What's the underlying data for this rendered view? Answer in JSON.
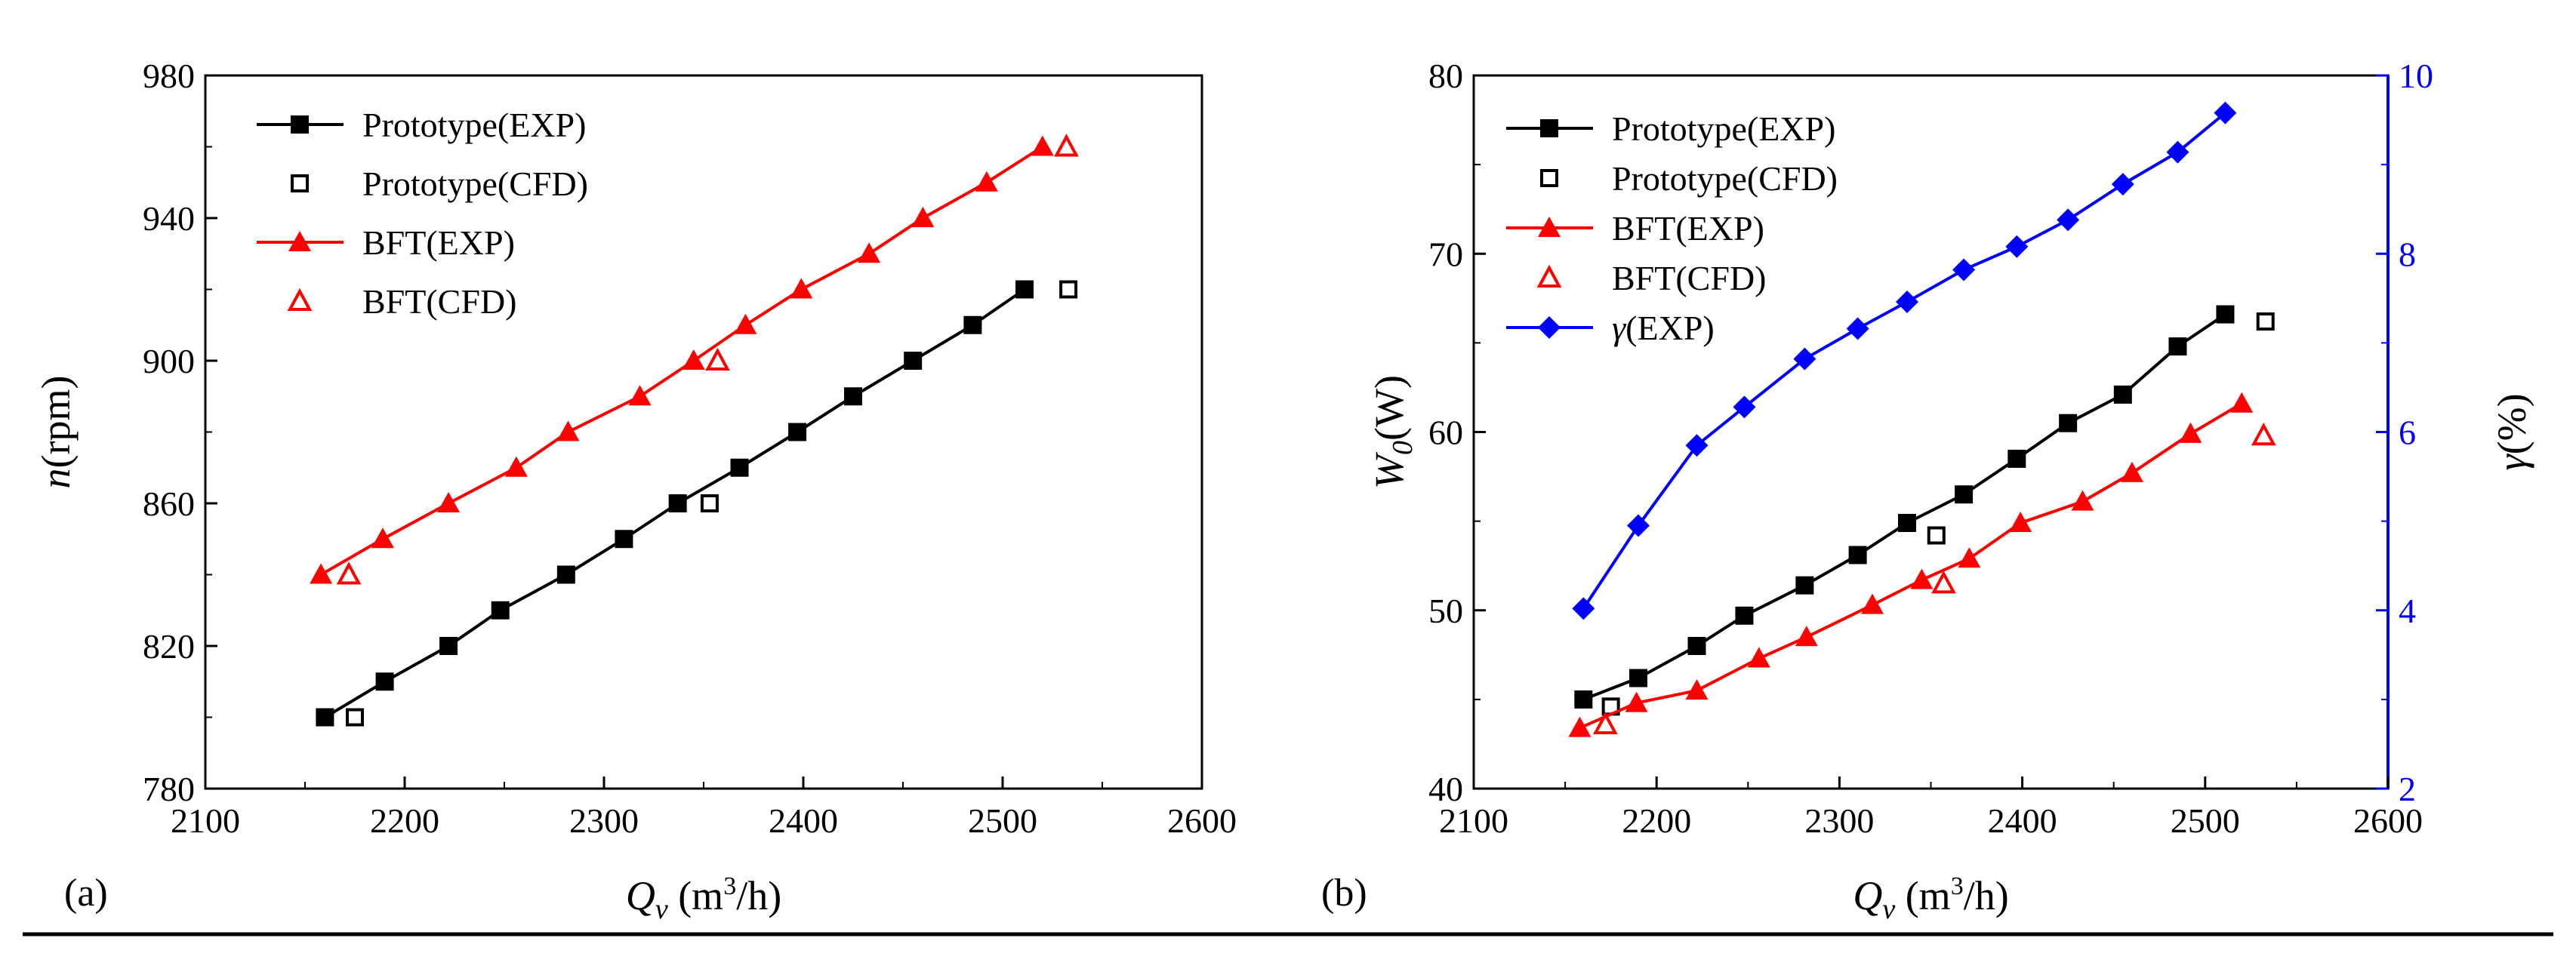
{
  "chart_data": [
    {
      "panel_label": "(a)",
      "type": "line",
      "title": "",
      "xlabel": {
        "main": "Q",
        "sub": "v",
        "unit": " (m",
        "sup": "3",
        "unit_end": "/h)"
      },
      "ylabel": {
        "main": "n",
        "unit": "(rpm)"
      },
      "xlim": [
        2100,
        2600
      ],
      "ylim": [
        780,
        980
      ],
      "xticks": [
        2100,
        2200,
        2300,
        2400,
        2500,
        2600
      ],
      "yticks": [
        780,
        820,
        860,
        900,
        940,
        980
      ],
      "legend_position": "top-left",
      "series": [
        {
          "name": "Prototype(EXP)",
          "color": "#000000",
          "marker": "filled-square",
          "line": true,
          "x": [
            2160,
            2190,
            2222,
            2248,
            2281,
            2310,
            2337,
            2368,
            2397,
            2425,
            2455,
            2485,
            2511
          ],
          "y": [
            800,
            810,
            820,
            830,
            840,
            850,
            860,
            870,
            880,
            890,
            900,
            910,
            920
          ]
        },
        {
          "name": "Prototype(CFD)",
          "color": "#000000",
          "marker": "open-square",
          "line": false,
          "x": [
            2175,
            2353,
            2533
          ],
          "y": [
            800,
            860,
            920
          ]
        },
        {
          "name": "BFT(EXP)",
          "color": "#ff0000",
          "marker": "filled-triangle",
          "line": true,
          "x": [
            2158,
            2189,
            2222,
            2256,
            2282,
            2318,
            2345,
            2371,
            2399,
            2433,
            2460,
            2492,
            2520
          ],
          "y": [
            840,
            850,
            860,
            870,
            880,
            890,
            900,
            910,
            920,
            930,
            940,
            950,
            960
          ]
        },
        {
          "name": "BFT(CFD)",
          "color": "#ff0000",
          "marker": "open-triangle",
          "line": false,
          "x": [
            2172,
            2357,
            2532
          ],
          "y": [
            840,
            900,
            960
          ]
        }
      ]
    },
    {
      "panel_label": "(b)",
      "type": "line",
      "title": "",
      "xlabel": {
        "main": "Q",
        "sub": "v",
        "unit": " (m",
        "sup": "3",
        "unit_end": "/h)"
      },
      "ylabel": {
        "main": "W",
        "sub": "0",
        "unit": "(W)"
      },
      "y2label": {
        "main": "γ",
        "unit": "(%)"
      },
      "xlim": [
        2100,
        2600
      ],
      "ylim": [
        40,
        80
      ],
      "y2lim": [
        2,
        10
      ],
      "xticks": [
        2100,
        2200,
        2300,
        2400,
        2500,
        2600
      ],
      "yticks": [
        40,
        50,
        60,
        70,
        80
      ],
      "y2ticks": [
        2,
        4,
        6,
        8,
        10
      ],
      "legend_position": "top-left",
      "series": [
        {
          "name": "Prototype(EXP)",
          "color": "#000000",
          "marker": "filled-square",
          "line": true,
          "axis": "left",
          "x": [
            2160,
            2190,
            2222,
            2248,
            2281,
            2310,
            2337,
            2368,
            2397,
            2425,
            2455,
            2485,
            2511
          ],
          "y": [
            45.0,
            46.2,
            48.0,
            49.7,
            51.4,
            53.1,
            54.9,
            56.5,
            58.5,
            60.5,
            62.1,
            64.8,
            66.6
          ]
        },
        {
          "name": "Prototype(CFD)",
          "color": "#000000",
          "marker": "open-square",
          "line": false,
          "axis": "left",
          "x": [
            2175,
            2353,
            2533
          ],
          "y": [
            44.6,
            54.2,
            66.2
          ]
        },
        {
          "name": "BFT(EXP)",
          "color": "#ff0000",
          "marker": "filled-triangle",
          "line": true,
          "axis": "left",
          "x": [
            2158,
            2189,
            2222,
            2256,
            2282,
            2318,
            2345,
            2371,
            2399,
            2433,
            2460,
            2492,
            2520
          ],
          "y": [
            43.4,
            44.8,
            45.5,
            47.3,
            48.5,
            50.3,
            51.7,
            52.9,
            54.9,
            56.1,
            57.7,
            59.9,
            61.6
          ]
        },
        {
          "name": "BFT(CFD)",
          "color": "#ff0000",
          "marker": "open-triangle",
          "line": false,
          "axis": "left",
          "x": [
            2172,
            2357,
            2532
          ],
          "y": [
            43.6,
            51.5,
            59.8
          ]
        },
        {
          "name": "γ(EXP)",
          "color": "#0000ff",
          "marker": "filled-diamond",
          "line": true,
          "axis": "right",
          "x": [
            2160,
            2190,
            2222,
            2248,
            2281,
            2310,
            2337,
            2368,
            2397,
            2425,
            2455,
            2485,
            2511
          ],
          "y": [
            4.02,
            4.95,
            5.85,
            6.28,
            6.82,
            7.16,
            7.46,
            7.82,
            8.08,
            8.38,
            8.78,
            9.14,
            9.58
          ]
        }
      ]
    }
  ]
}
